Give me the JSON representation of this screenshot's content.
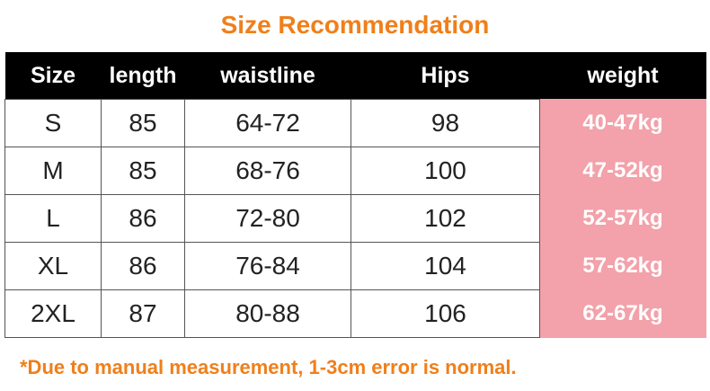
{
  "header": {
    "title": "Size Recommendation"
  },
  "table": {
    "columns": [
      "Size",
      "length",
      "waistline",
      "Hips",
      "weight"
    ],
    "rows": [
      [
        "S",
        "85",
        "64-72",
        "98",
        "40-47kg"
      ],
      [
        "M",
        "85",
        "68-76",
        "100",
        "47-52kg"
      ],
      [
        "L",
        "86",
        "72-80",
        "102",
        "52-57kg"
      ],
      [
        "XL",
        "86",
        "76-84",
        "104",
        "57-62kg"
      ],
      [
        "2XL",
        "87",
        "80-88",
        "106",
        "62-67kg"
      ]
    ]
  },
  "footnote": "*Due to manual measurement, 1-3cm error is normal."
}
